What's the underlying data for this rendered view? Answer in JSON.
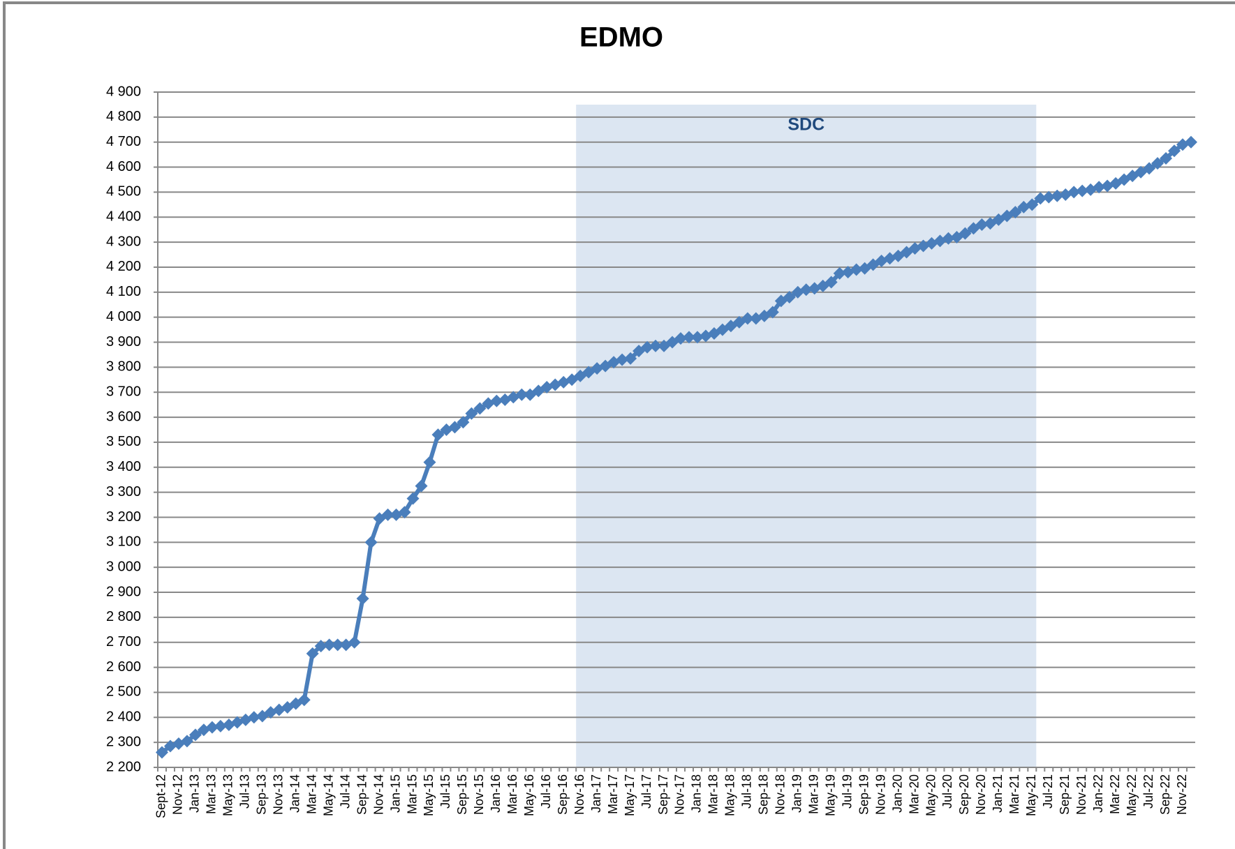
{
  "chart_data": {
    "type": "line",
    "title": "EDMO",
    "categories": [
      "Sept-12",
      null,
      "Nov-12",
      null,
      "Jan-13",
      null,
      "Mar-13",
      null,
      "May-13",
      null,
      "Jul-13",
      null,
      "Sep-13",
      null,
      "Nov-13",
      null,
      "Jan-14",
      null,
      "Mar-14",
      null,
      "May-14",
      null,
      "Jul-14",
      null,
      "Sep-14",
      null,
      "Nov-14",
      null,
      "Jan-15",
      null,
      "Mar-15",
      null,
      "May-15",
      null,
      "Jul-15",
      null,
      "Sep-15",
      null,
      "Nov-15",
      null,
      "Jan-16",
      null,
      "Mar-16",
      null,
      "May-16",
      null,
      "Jul-16",
      null,
      "Sep-16",
      null,
      "Nov-16",
      null,
      "Jan-17",
      null,
      "Mar-17",
      null,
      "May-17",
      null,
      "Jul-17",
      null,
      "Sep-17",
      null,
      "Nov-17",
      null,
      "Jan-18",
      null,
      "Mar-18",
      null,
      "May-18",
      null,
      "Jul-18",
      null,
      "Sep-18",
      null,
      "Nov-18",
      null,
      "Jan-19",
      null,
      "Mar-19",
      null,
      "May-19",
      null,
      "Jul-19",
      null,
      "Sep-19",
      null,
      "Nov-19",
      null,
      "Jan-20",
      null,
      "Mar-20",
      null,
      "May-20",
      null,
      "Jul-20",
      null,
      "Sep-20",
      null,
      "Nov-20",
      null,
      "Jan-21",
      null,
      "Mar-21",
      null,
      "May-21",
      null,
      "Jul-21",
      null,
      "Sep-21",
      null,
      "Nov-21",
      null,
      "Jan-22",
      null,
      "Mar-22",
      null,
      "May-22",
      null,
      "Jul-22",
      null,
      "Sep-22",
      null,
      "Nov-22",
      null
    ],
    "values": [
      2260,
      2285,
      2295,
      2305,
      2330,
      2350,
      2360,
      2365,
      2370,
      2380,
      2390,
      2400,
      2405,
      2420,
      2430,
      2440,
      2455,
      2470,
      2655,
      2685,
      2690,
      2690,
      2690,
      2700,
      2875,
      3100,
      3195,
      3210,
      3210,
      3220,
      3275,
      3325,
      3420,
      3530,
      3550,
      3560,
      3580,
      3615,
      3635,
      3655,
      3665,
      3670,
      3680,
      3690,
      3690,
      3705,
      3720,
      3730,
      3740,
      3750,
      3765,
      3780,
      3795,
      3805,
      3820,
      3830,
      3835,
      3865,
      3880,
      3885,
      3885,
      3900,
      3915,
      3920,
      3920,
      3925,
      3935,
      3950,
      3965,
      3980,
      3995,
      3995,
      4005,
      4020,
      4065,
      4080,
      4100,
      4110,
      4115,
      4125,
      4140,
      4175,
      4180,
      4190,
      4195,
      4210,
      4225,
      4235,
      4245,
      4260,
      4275,
      4285,
      4295,
      4305,
      4315,
      4320,
      4335,
      4355,
      4370,
      4375,
      4390,
      4405,
      4420,
      4440,
      4450,
      4475,
      4480,
      4485,
      4490,
      4500,
      4505,
      4510,
      4520,
      4525,
      4535,
      4550,
      4565,
      4580,
      4595,
      4615,
      4635,
      4665,
      4690,
      4700
    ],
    "color": "#4a7ebb",
    "shaded_region": {
      "label": "SDC",
      "from": "Nov-16",
      "to": "May-21",
      "color": "#dce6f2"
    },
    "ylim": [
      2200,
      4900
    ],
    "yticks": [
      {
        "value": 2200,
        "label": "2 200"
      },
      {
        "value": 2300,
        "label": "2 300"
      },
      {
        "value": 2400,
        "label": "2 400"
      },
      {
        "value": 2500,
        "label": "2 500"
      },
      {
        "value": 2600,
        "label": "2 600"
      },
      {
        "value": 2700,
        "label": "2 700"
      },
      {
        "value": 2800,
        "label": "2 800"
      },
      {
        "value": 2900,
        "label": "2 900"
      },
      {
        "value": 3000,
        "label": "3 000"
      },
      {
        "value": 3100,
        "label": "3 100"
      },
      {
        "value": 3200,
        "label": "3 200"
      },
      {
        "value": 3300,
        "label": "3 300"
      },
      {
        "value": 3400,
        "label": "3 400"
      },
      {
        "value": 3500,
        "label": "3 500"
      },
      {
        "value": 3600,
        "label": "3 600"
      },
      {
        "value": 3700,
        "label": "3 700"
      },
      {
        "value": 3800,
        "label": "3 800"
      },
      {
        "value": 3900,
        "label": "3 900"
      },
      {
        "value": 4000,
        "label": "4 000"
      },
      {
        "value": 4100,
        "label": "4 100"
      },
      {
        "value": 4200,
        "label": "4 200"
      },
      {
        "value": 4300,
        "label": "4 300"
      },
      {
        "value": 4400,
        "label": "4 400"
      },
      {
        "value": 4500,
        "label": "4 500"
      },
      {
        "value": 4600,
        "label": "4 600"
      },
      {
        "value": 4700,
        "label": "4 700"
      },
      {
        "value": 4800,
        "label": "4 800"
      },
      {
        "value": 4900,
        "label": "4 900"
      }
    ],
    "grid": true
  }
}
